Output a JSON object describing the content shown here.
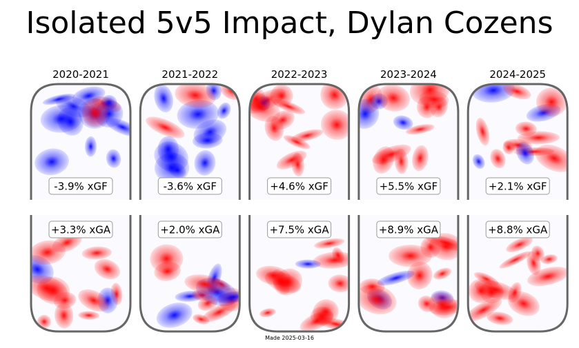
{
  "title": "Isolated 5v5 Impact, Dylan Cozens",
  "footer": "Made 2025-03-16",
  "colors": {
    "positive": "#ff0000",
    "negative": "#0000ff",
    "rink_outline": "#666666"
  },
  "chart_data": {
    "type": "heatmap",
    "title": "Isolated 5v5 Impact, Dylan Cozens",
    "panels": [
      {
        "season": "2020-2021",
        "xgf": "-3.9% xGF",
        "xga": "+3.3% xGA",
        "xgf_value": -3.9,
        "xga_value": 3.3
      },
      {
        "season": "2021-2022",
        "xgf": "-3.6% xGF",
        "xga": "+2.0% xGA",
        "xgf_value": -3.6,
        "xga_value": 2.0
      },
      {
        "season": "2022-2023",
        "xgf": "+4.6% xGF",
        "xga": "+7.5% xGA",
        "xgf_value": 4.6,
        "xga_value": 7.5
      },
      {
        "season": "2023-2024",
        "xgf": "+5.5% xGF",
        "xga": "+8.9% xGA",
        "xgf_value": 5.5,
        "xga_value": 8.9
      },
      {
        "season": "2024-2025",
        "xgf": "+2.1% xGF",
        "xga": "+8.8% xGA",
        "xgf_value": 2.1,
        "xga_value": 8.8
      }
    ]
  }
}
